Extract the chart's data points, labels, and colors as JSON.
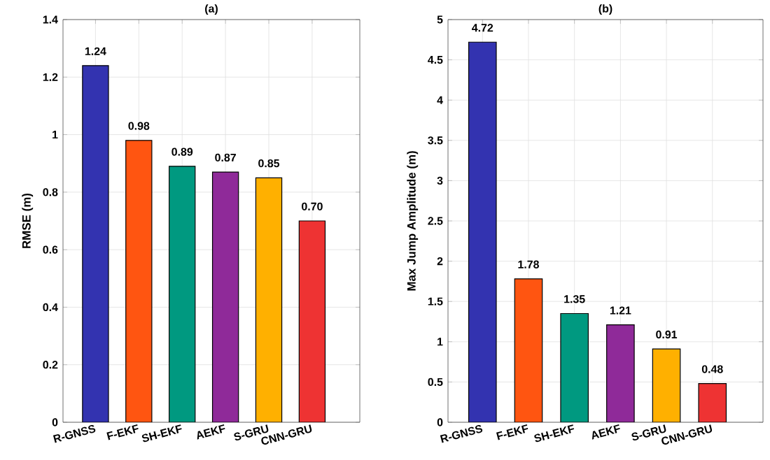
{
  "chart_data": [
    {
      "type": "bar",
      "title": "(a)",
      "ylabel": "RMSE (m)",
      "categories": [
        "R-GNSS",
        "F-EKF",
        "SH-EKF",
        "AEKF",
        "S-GRU",
        "CNN-GRU"
      ],
      "values": [
        1.24,
        0.98,
        0.89,
        0.87,
        0.85,
        0.7
      ],
      "colors": [
        "#3333b0",
        "#ff5511",
        "#009980",
        "#8f2a99",
        "#ffb000",
        "#ee3333"
      ],
      "value_labels": [
        "1.24",
        "0.98",
        "0.89",
        "0.87",
        "0.85",
        "0.70"
      ],
      "ylim": [
        0,
        1.4
      ],
      "yticks": [
        0,
        0.2,
        0.4,
        0.6,
        0.8,
        1,
        1.2,
        1.4
      ],
      "grid": true
    },
    {
      "type": "bar",
      "title": "(b)",
      "ylabel": "Max Jump Amplitude (m)",
      "categories": [
        "R-GNSS",
        "F-EKF",
        "SH-EKF",
        "AEKF",
        "S-GRU",
        "CNN-GRU"
      ],
      "values": [
        4.72,
        1.78,
        1.35,
        1.21,
        0.91,
        0.48
      ],
      "colors": [
        "#3333b0",
        "#ff5511",
        "#009980",
        "#8f2a99",
        "#ffb000",
        "#ee3333"
      ],
      "value_labels": [
        "4.72",
        "1.78",
        "1.35",
        "1.21",
        "0.91",
        "0.48"
      ],
      "ylim": [
        0,
        5
      ],
      "yticks": [
        0,
        0.5,
        1,
        1.5,
        2,
        2.5,
        3,
        3.5,
        4,
        4.5,
        5
      ],
      "grid": true
    }
  ]
}
